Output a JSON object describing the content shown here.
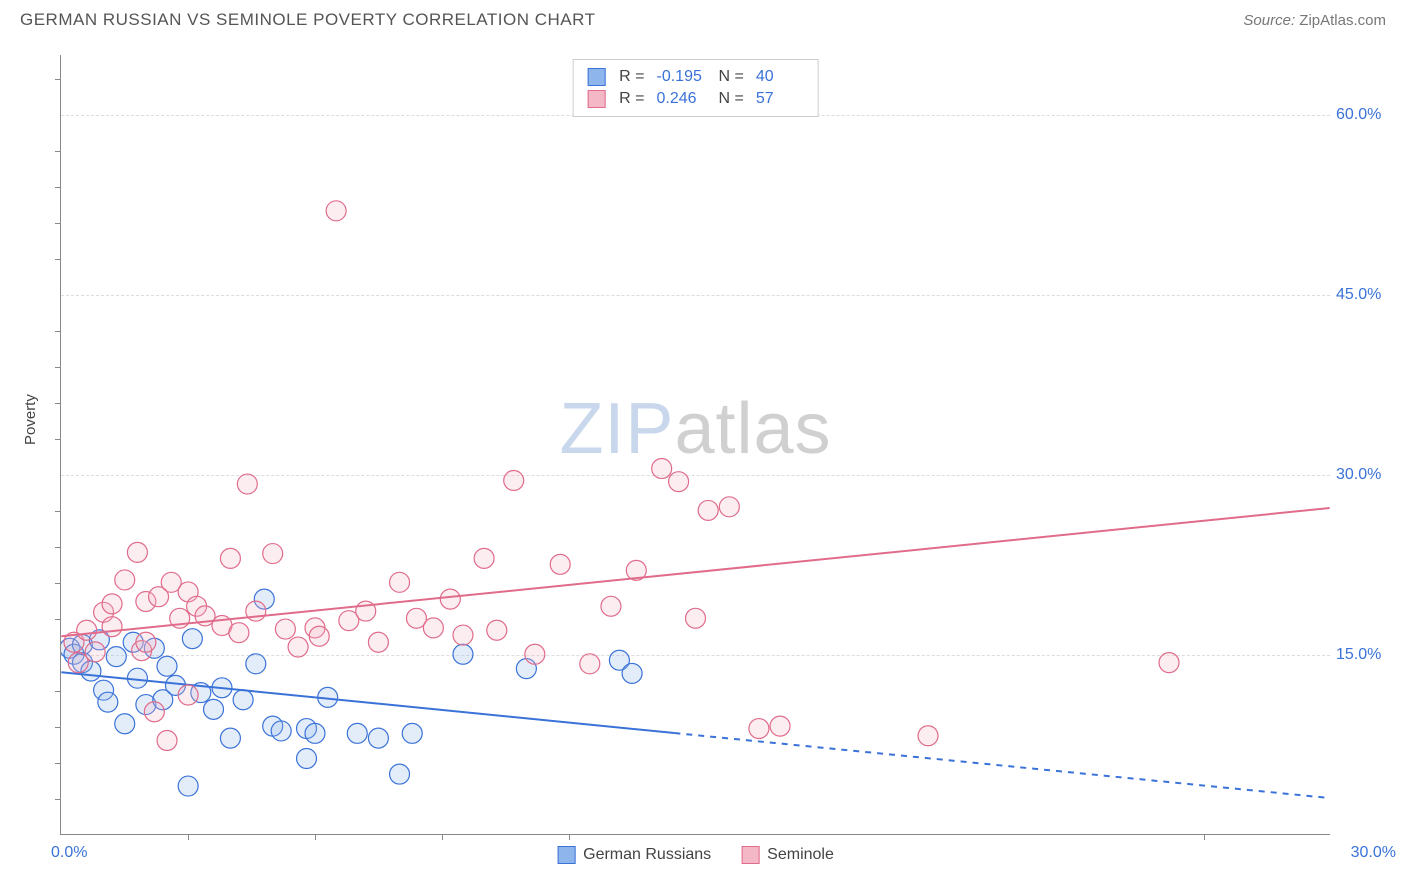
{
  "header": {
    "title": "GERMAN RUSSIAN VS SEMINOLE POVERTY CORRELATION CHART",
    "source_prefix": "Source: ",
    "source_name": "ZipAtlas.com"
  },
  "chart": {
    "type": "scatter",
    "y_label": "Poverty",
    "x_range": [
      0.0,
      30.0
    ],
    "y_range": [
      0.0,
      65.0
    ],
    "x_ticks": [
      0.0,
      30.0
    ],
    "x_tick_labels": [
      "0.0%",
      "30.0%"
    ],
    "y_ticks": [
      15.0,
      30.0,
      45.0,
      60.0
    ],
    "y_tick_labels": [
      "15.0%",
      "30.0%",
      "45.0%",
      "60.0%"
    ],
    "minor_x_ticks": [
      3.0,
      6.0,
      9.0,
      12.0,
      27.0
    ],
    "minor_y_ticks": [
      3,
      6,
      9,
      12,
      18,
      21,
      24,
      27,
      33,
      36,
      39,
      42,
      48,
      51,
      54,
      57,
      63
    ],
    "grid_color": "#dcdcdc",
    "background_color": "#ffffff",
    "axis_color": "#888888",
    "label_fontsize": 15,
    "tick_fontsize": 16,
    "tick_color": "#3a72d8",
    "marker_radius": 10,
    "marker_stroke_width": 1.2,
    "marker_fill_opacity": 0.25,
    "line_width": 2
  },
  "series": [
    {
      "name": "German Russians",
      "color_fill": "#8fb6ec",
      "color_stroke": "#3a72d8",
      "r_value": "-0.195",
      "n_value": "40",
      "trend": {
        "x1": 0.0,
        "y1": 13.5,
        "x2": 30.0,
        "y2": 3.0,
        "solid_until_x": 14.5
      },
      "points": [
        [
          0.2,
          15.5
        ],
        [
          0.3,
          15.0
        ],
        [
          0.5,
          14.3
        ],
        [
          0.5,
          15.8
        ],
        [
          0.7,
          13.6
        ],
        [
          0.9,
          16.2
        ],
        [
          1.0,
          12.0
        ],
        [
          1.1,
          11.0
        ],
        [
          1.3,
          14.8
        ],
        [
          1.5,
          9.2
        ],
        [
          1.7,
          16.0
        ],
        [
          1.8,
          13.0
        ],
        [
          2.0,
          10.8
        ],
        [
          2.2,
          15.5
        ],
        [
          2.4,
          11.2
        ],
        [
          2.5,
          14.0
        ],
        [
          2.7,
          12.4
        ],
        [
          3.0,
          4.0
        ],
        [
          3.1,
          16.3
        ],
        [
          3.3,
          11.8
        ],
        [
          3.6,
          10.4
        ],
        [
          3.8,
          12.2
        ],
        [
          4.0,
          8.0
        ],
        [
          4.3,
          11.2
        ],
        [
          4.6,
          14.2
        ],
        [
          4.8,
          19.6
        ],
        [
          5.0,
          9.0
        ],
        [
          5.2,
          8.6
        ],
        [
          5.8,
          6.3
        ],
        [
          5.8,
          8.8
        ],
        [
          6.0,
          8.4
        ],
        [
          6.3,
          11.4
        ],
        [
          7.0,
          8.4
        ],
        [
          7.5,
          8.0
        ],
        [
          8.0,
          5.0
        ],
        [
          8.3,
          8.4
        ],
        [
          9.5,
          15.0
        ],
        [
          11.0,
          13.8
        ],
        [
          13.2,
          14.5
        ],
        [
          13.5,
          13.4
        ]
      ]
    },
    {
      "name": "Seminole",
      "color_fill": "#f4b7c6",
      "color_stroke": "#e06b8a",
      "r_value": "0.246",
      "n_value": "57",
      "trend": {
        "x1": 0.0,
        "y1": 16.5,
        "x2": 30.0,
        "y2": 27.2,
        "solid_until_x": 30.0
      },
      "points": [
        [
          0.3,
          16.0
        ],
        [
          0.4,
          14.3
        ],
        [
          0.6,
          17.0
        ],
        [
          0.8,
          15.2
        ],
        [
          1.0,
          18.5
        ],
        [
          1.2,
          17.3
        ],
        [
          1.2,
          19.2
        ],
        [
          1.5,
          21.2
        ],
        [
          1.8,
          23.5
        ],
        [
          1.9,
          15.3
        ],
        [
          2.0,
          16.0
        ],
        [
          2.0,
          19.4
        ],
        [
          2.2,
          10.2
        ],
        [
          2.3,
          19.8
        ],
        [
          2.5,
          7.8
        ],
        [
          2.6,
          21.0
        ],
        [
          2.8,
          18.0
        ],
        [
          3.0,
          20.2
        ],
        [
          3.0,
          11.6
        ],
        [
          3.2,
          19.0
        ],
        [
          3.4,
          18.2
        ],
        [
          3.8,
          17.4
        ],
        [
          4.0,
          23.0
        ],
        [
          4.2,
          16.8
        ],
        [
          4.4,
          29.2
        ],
        [
          4.6,
          18.6
        ],
        [
          5.0,
          23.4
        ],
        [
          5.3,
          17.1
        ],
        [
          5.6,
          15.6
        ],
        [
          6.0,
          17.2
        ],
        [
          6.1,
          16.5
        ],
        [
          6.5,
          52.0
        ],
        [
          6.8,
          17.8
        ],
        [
          7.2,
          18.6
        ],
        [
          7.5,
          16.0
        ],
        [
          8.0,
          21.0
        ],
        [
          8.4,
          18.0
        ],
        [
          8.8,
          17.2
        ],
        [
          9.2,
          19.6
        ],
        [
          9.5,
          16.6
        ],
        [
          10.0,
          23.0
        ],
        [
          10.3,
          17.0
        ],
        [
          10.7,
          29.5
        ],
        [
          11.2,
          15.0
        ],
        [
          11.8,
          22.5
        ],
        [
          12.5,
          14.2
        ],
        [
          13.0,
          19.0
        ],
        [
          13.6,
          22.0
        ],
        [
          14.2,
          30.5
        ],
        [
          14.6,
          29.4
        ],
        [
          15.0,
          18.0
        ],
        [
          15.3,
          27.0
        ],
        [
          15.8,
          27.3
        ],
        [
          16.5,
          8.8
        ],
        [
          17.0,
          9.0
        ],
        [
          20.5,
          8.2
        ],
        [
          26.2,
          14.3
        ]
      ]
    }
  ],
  "legend_bottom": [
    {
      "label": "German Russians",
      "fill": "#8fb6ec",
      "stroke": "#3a72d8"
    },
    {
      "label": "Seminole",
      "fill": "#f4b7c6",
      "stroke": "#e06b8a"
    }
  ],
  "watermark": {
    "part1": "ZIP",
    "part2": "atlas"
  }
}
